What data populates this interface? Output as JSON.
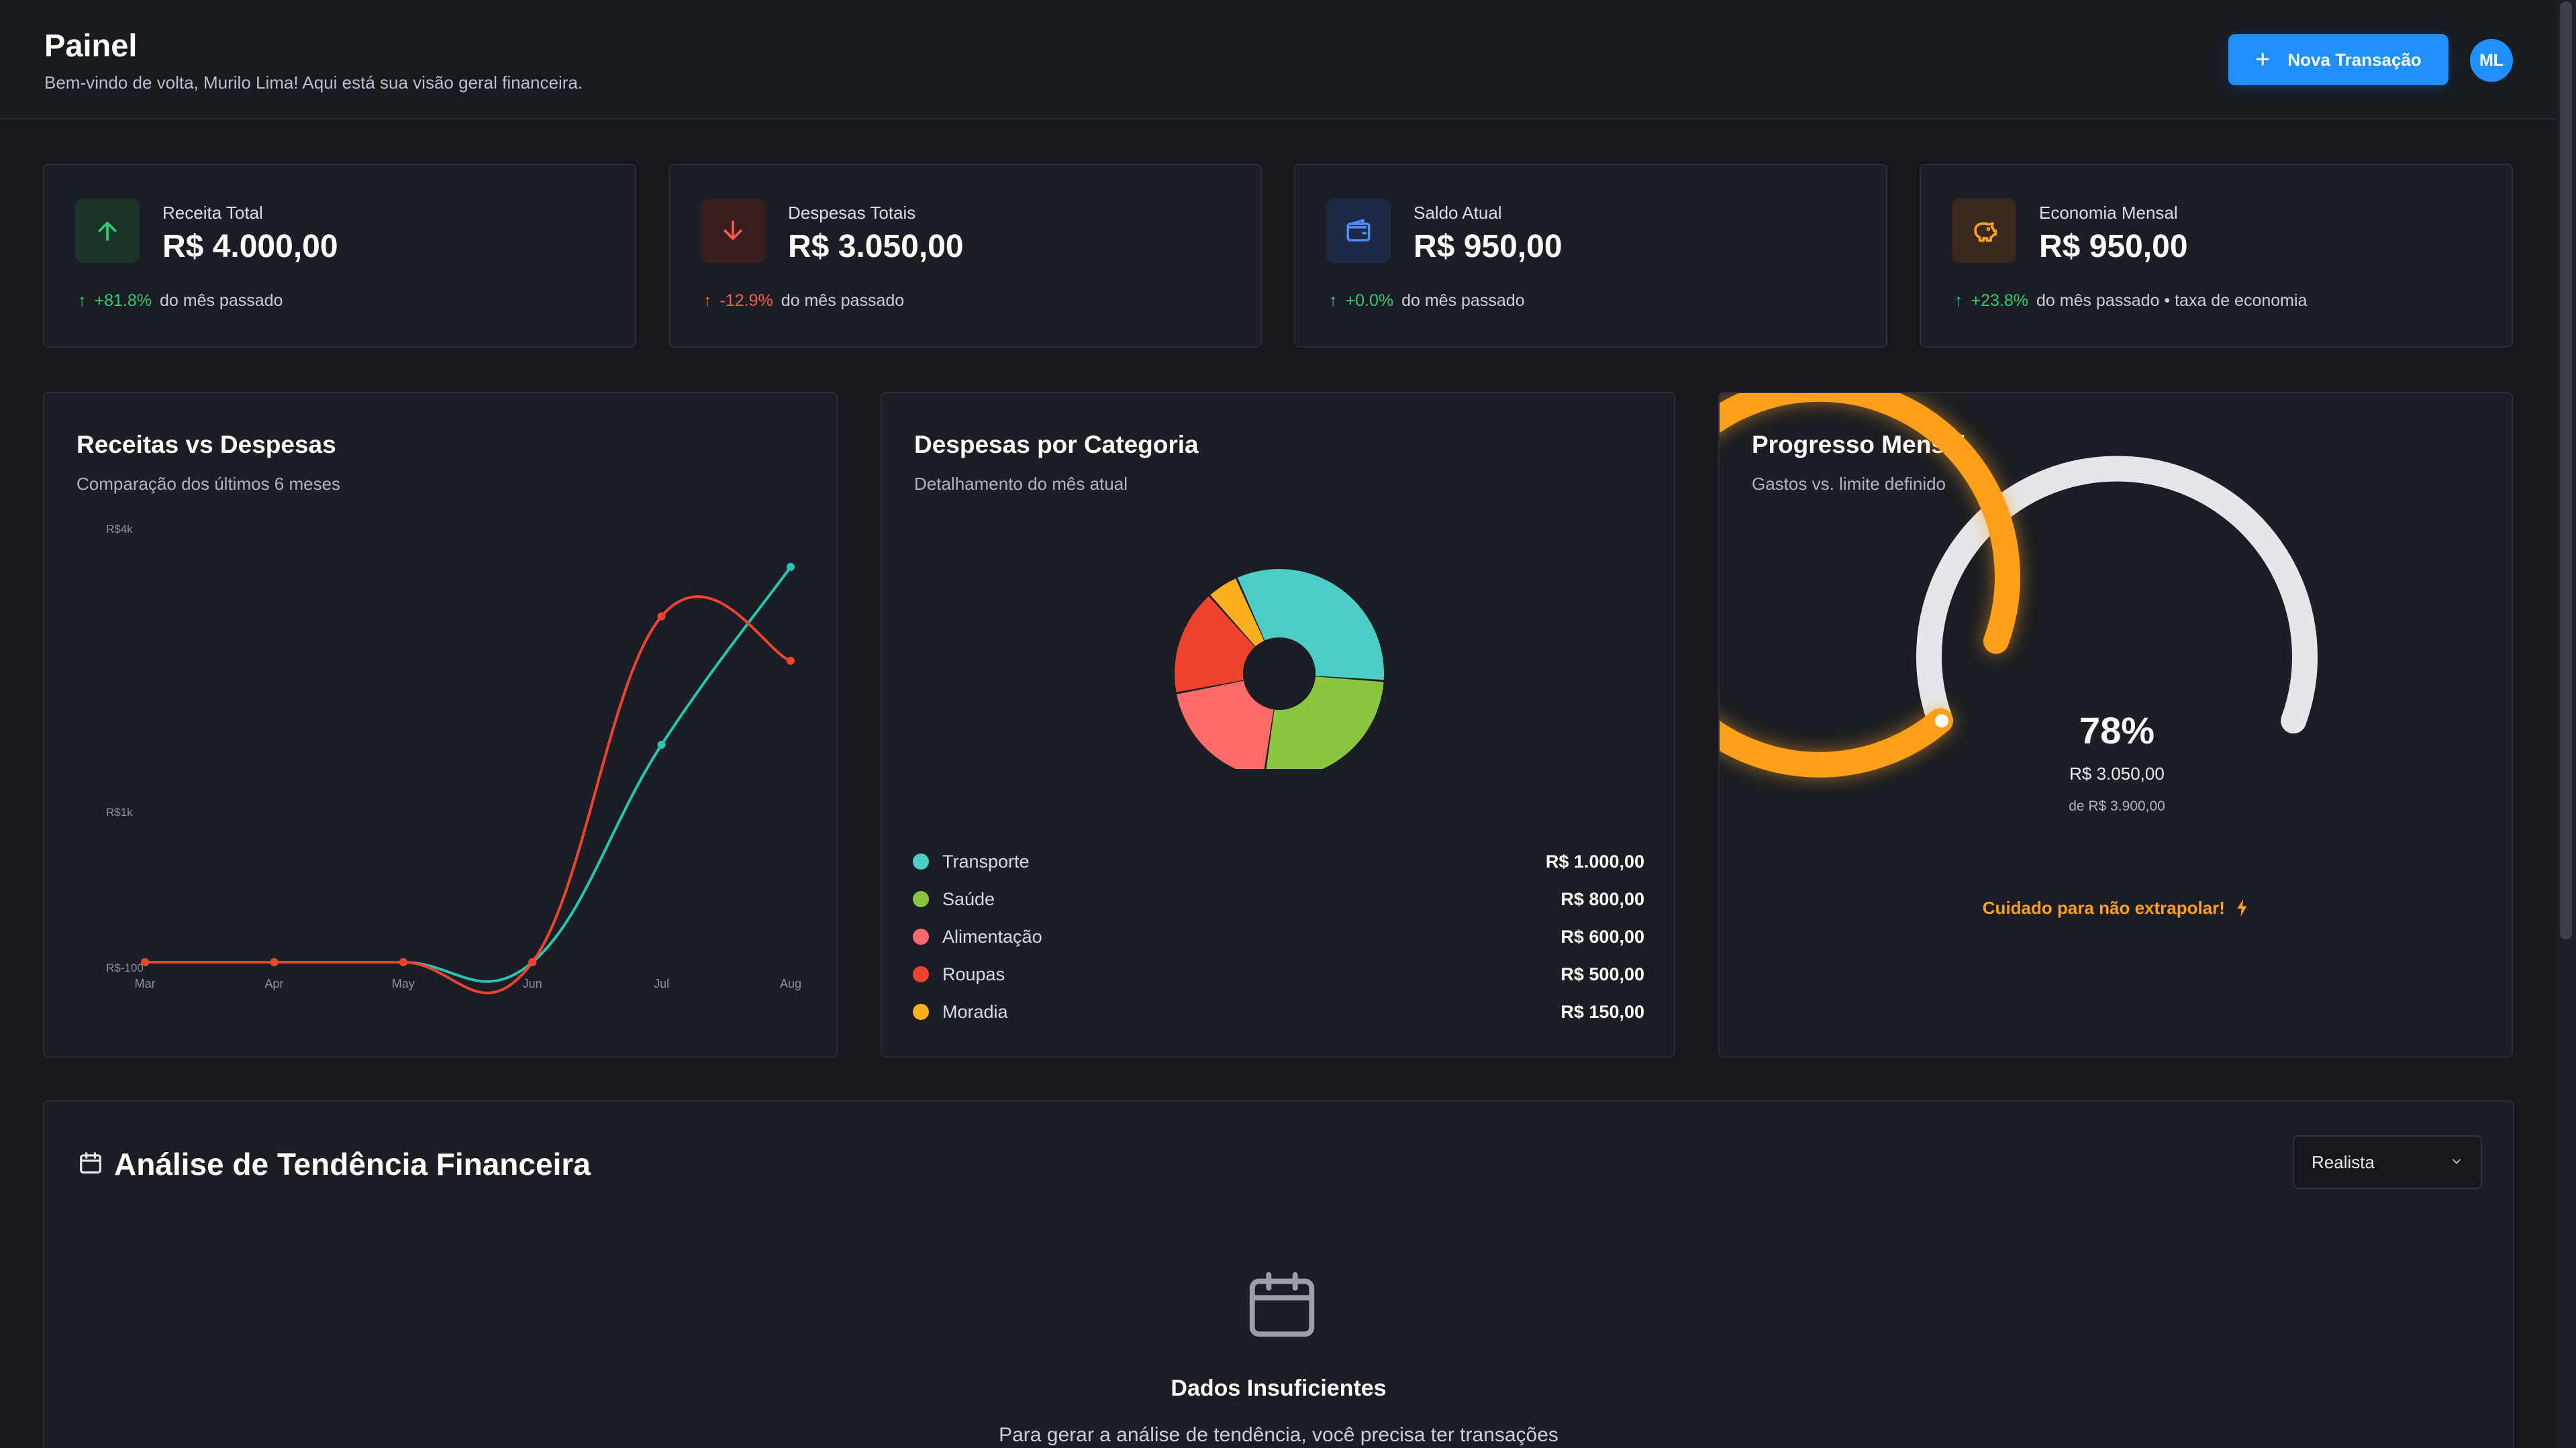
{
  "header": {
    "title": "Painel",
    "subtitle": "Bem-vindo de volta, Murilo Lima! Aqui está sua visão geral financeira.",
    "new_transaction_label": "Nova Transação",
    "avatar_initials": "ML"
  },
  "stats": [
    {
      "label": "Receita Total",
      "value": "R$ 4.000,00",
      "delta": "+81.8%",
      "trend": "up",
      "caption": "do mês passado",
      "icon": "arrow-up-icon",
      "accent": "#2ecc71"
    },
    {
      "label": "Despesas Totais",
      "value": "R$ 3.050,00",
      "delta": "-12.9%",
      "trend": "down",
      "caption": "do mês passado",
      "icon": "arrow-down-icon",
      "accent": "#ff5a4e"
    },
    {
      "label": "Saldo Atual",
      "value": "R$ 950,00",
      "delta": "+0.0%",
      "trend": "up",
      "caption": "do mês passado",
      "icon": "wallet-icon",
      "accent": "#4d8dff"
    },
    {
      "label": "Economia Mensal",
      "value": "R$ 950,00",
      "delta": "+23.8%",
      "trend": "up",
      "caption": "do mês passado • taxa de economia",
      "icon": "piggy-bank-icon",
      "accent": "#ff9f1a"
    }
  ],
  "income_chart": {
    "title": "Receitas vs Despesas",
    "subtitle": "Comparação dos últimos 6 meses"
  },
  "category_chart": {
    "title": "Despesas por Categoria",
    "subtitle": "Detalhamento do mês atual"
  },
  "progress": {
    "title": "Progresso Mensal",
    "subtitle": "Gastos vs. limite definido",
    "percent_label": "78%",
    "percent": 78,
    "spent": "R$ 3.050,00",
    "limit": "de R$ 3.900,00",
    "warning": "Cuidado para não extrapolar!",
    "gauge_color": "#ff9f1a",
    "track_color": "#e4e6ea"
  },
  "trend": {
    "title": "Análise de Tendência Financeira",
    "select_value": "Realista",
    "empty_title": "Dados Insuficientes",
    "empty_desc": "Para gerar a análise de tendência, você precisa ter transações"
  },
  "chart_data": [
    {
      "type": "line",
      "x": [
        "Mar",
        "Apr",
        "May",
        "Jun",
        "Jul",
        "Aug"
      ],
      "ytick_labels": [
        "R$4k",
        "R$1k",
        "R$-100"
      ],
      "series": [
        {
          "values": [
            0,
            0,
            0,
            0,
            2200,
            4000
          ],
          "color": "#26c6b0"
        },
        {
          "values": [
            0,
            0,
            0,
            0,
            3500,
            3050
          ],
          "color": "#f0432e"
        }
      ],
      "ylim": [
        0,
        4400
      ]
    },
    {
      "type": "pie",
      "categories": [
        "Transporte",
        "Saúde",
        "Alimentação",
        "Roupas",
        "Moradia"
      ],
      "values": [
        1000,
        800,
        600,
        500,
        150
      ],
      "value_labels": [
        "R$ 1.000,00",
        "R$ 800,00",
        "R$ 600,00",
        "R$ 500,00",
        "R$ 150,00"
      ],
      "colors": [
        "#4ecdc4",
        "#8cc63f",
        "#ff6b6b",
        "#f0432e",
        "#ffb020"
      ]
    }
  ]
}
